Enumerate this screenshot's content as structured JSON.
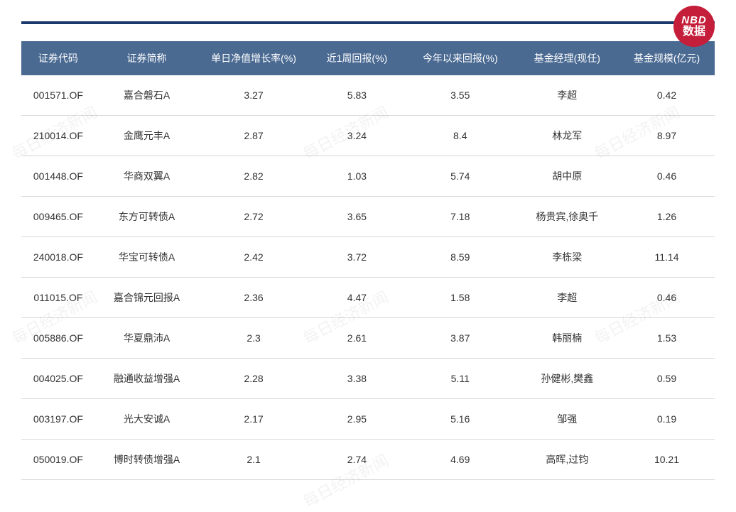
{
  "logo": {
    "top": "NBD",
    "bottom": "数据"
  },
  "table": {
    "header_bg_color": "#4a6a92",
    "header_text_color": "#ffffff",
    "row_border_color": "#d8d8d8",
    "cell_text_color": "#333333",
    "columns": [
      {
        "key": "code",
        "label": "证券代码",
        "class": "col-code"
      },
      {
        "key": "name",
        "label": "证券简称",
        "class": "col-name"
      },
      {
        "key": "daily",
        "label": "单日净值增长率(%)",
        "class": "col-daily"
      },
      {
        "key": "week",
        "label": "近1周回报(%)",
        "class": "col-week"
      },
      {
        "key": "ytd",
        "label": "今年以来回报(%)",
        "class": "col-ytd"
      },
      {
        "key": "mgr",
        "label": "基金经理(现任)",
        "class": "col-mgr"
      },
      {
        "key": "scale",
        "label": "基金规模(亿元)",
        "class": "col-scale"
      }
    ],
    "rows": [
      {
        "code": "001571.OF",
        "name": "嘉合磐石A",
        "daily": "3.27",
        "week": "5.83",
        "ytd": "3.55",
        "mgr": "李超",
        "scale": "0.42"
      },
      {
        "code": "210014.OF",
        "name": "金鹰元丰A",
        "daily": "2.87",
        "week": "3.24",
        "ytd": "8.4",
        "mgr": "林龙军",
        "scale": "8.97"
      },
      {
        "code": "001448.OF",
        "name": "华商双翼A",
        "daily": "2.82",
        "week": "1.03",
        "ytd": "5.74",
        "mgr": "胡中原",
        "scale": "0.46"
      },
      {
        "code": "009465.OF",
        "name": "东方可转债A",
        "daily": "2.72",
        "week": "3.65",
        "ytd": "7.18",
        "mgr": "杨贵宾,徐奥千",
        "scale": "1.26"
      },
      {
        "code": "240018.OF",
        "name": "华宝可转债A",
        "daily": "2.42",
        "week": "3.72",
        "ytd": "8.59",
        "mgr": "李栋梁",
        "scale": "11.14"
      },
      {
        "code": "011015.OF",
        "name": "嘉合锦元回报A",
        "daily": "2.36",
        "week": "4.47",
        "ytd": "1.58",
        "mgr": "李超",
        "scale": "0.46"
      },
      {
        "code": "005886.OF",
        "name": "华夏鼎沛A",
        "daily": "2.3",
        "week": "2.61",
        "ytd": "3.87",
        "mgr": "韩丽楠",
        "scale": "1.53"
      },
      {
        "code": "004025.OF",
        "name": "融通收益增强A",
        "daily": "2.28",
        "week": "3.38",
        "ytd": "5.11",
        "mgr": "孙健彬,樊鑫",
        "scale": "0.59"
      },
      {
        "code": "003197.OF",
        "name": "光大安诚A",
        "daily": "2.17",
        "week": "2.95",
        "ytd": "5.16",
        "mgr": "邹强",
        "scale": "0.19"
      },
      {
        "code": "050019.OF",
        "name": "博时转债增强A",
        "daily": "2.1",
        "week": "2.74",
        "ytd": "4.69",
        "mgr": "高晖,过钧",
        "scale": "10.21"
      }
    ]
  },
  "watermark": {
    "text": "每日经济新闻"
  }
}
